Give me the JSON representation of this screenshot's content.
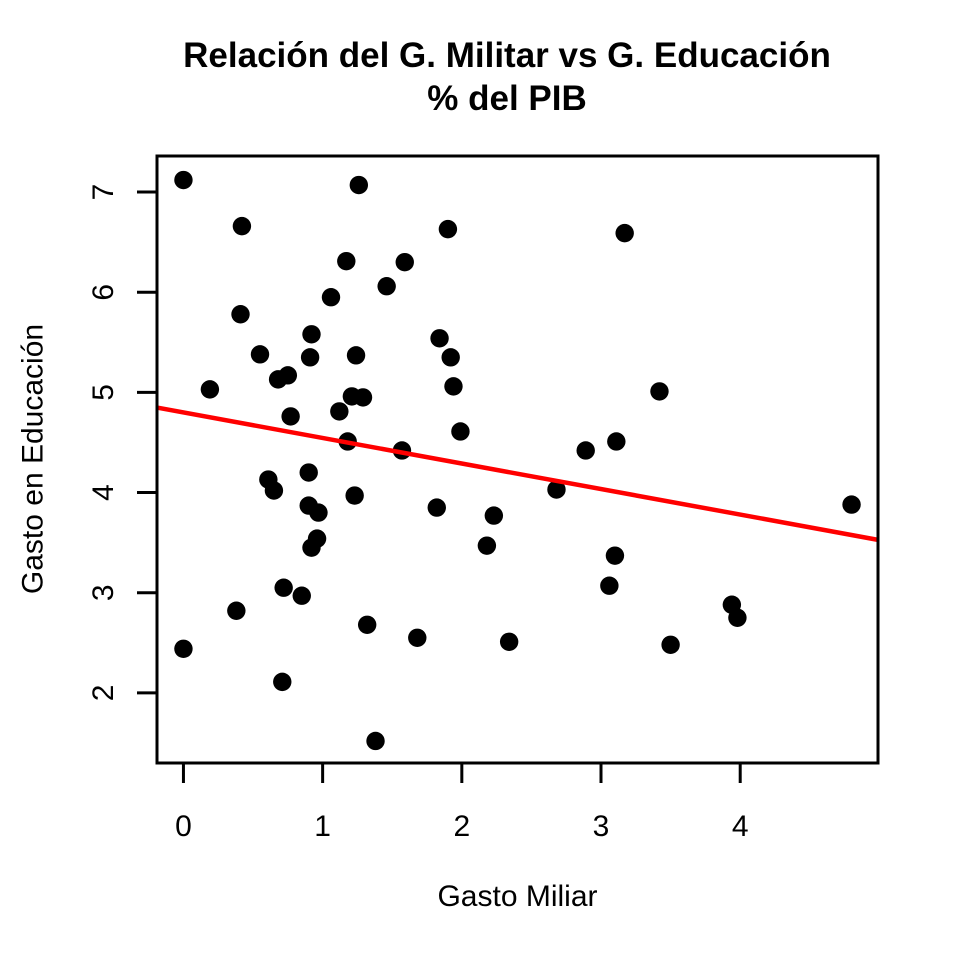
{
  "chart_data": {
    "type": "scatter",
    "title": "Relación del G. Militar vs G. Educación",
    "title_line2": "% del PIB",
    "xlabel": "Gasto Miliar",
    "ylabel": "Gasto en Educación",
    "xlim": [
      -0.19,
      4.99
    ],
    "ylim": [
      1.3,
      7.36
    ],
    "x_ticks": [
      0,
      1,
      2,
      3,
      4
    ],
    "y_ticks": [
      2,
      3,
      4,
      5,
      6,
      7
    ],
    "grid": false,
    "legend": "none",
    "background_color": "#FFFFFF",
    "axis_color": "#000000",
    "point_color": "#000000",
    "trend_line": {
      "type": "linear",
      "slope": -0.255,
      "intercept": 4.8,
      "color": "#FF0000"
    },
    "points": [
      [
        0.0,
        7.12
      ],
      [
        1.26,
        7.07
      ],
      [
        0.42,
        6.66
      ],
      [
        1.9,
        6.63
      ],
      [
        3.17,
        6.59
      ],
      [
        1.17,
        6.31
      ],
      [
        1.59,
        6.3
      ],
      [
        1.46,
        6.06
      ],
      [
        1.06,
        5.95
      ],
      [
        0.41,
        5.78
      ],
      [
        0.92,
        5.58
      ],
      [
        1.84,
        5.54
      ],
      [
        0.55,
        5.38
      ],
      [
        1.24,
        5.37
      ],
      [
        0.91,
        5.35
      ],
      [
        1.92,
        5.35
      ],
      [
        0.75,
        5.17
      ],
      [
        0.68,
        5.13
      ],
      [
        1.94,
        5.06
      ],
      [
        0.19,
        5.03
      ],
      [
        3.42,
        5.01
      ],
      [
        1.21,
        4.96
      ],
      [
        1.29,
        4.95
      ],
      [
        1.12,
        4.81
      ],
      [
        0.77,
        4.76
      ],
      [
        1.99,
        4.61
      ],
      [
        1.18,
        4.51
      ],
      [
        3.11,
        4.51
      ],
      [
        1.57,
        4.42
      ],
      [
        2.89,
        4.42
      ],
      [
        0.9,
        4.2
      ],
      [
        0.61,
        4.13
      ],
      [
        2.68,
        4.03
      ],
      [
        0.65,
        4.02
      ],
      [
        1.23,
        3.97
      ],
      [
        4.8,
        3.88
      ],
      [
        0.9,
        3.87
      ],
      [
        1.82,
        3.85
      ],
      [
        0.97,
        3.8
      ],
      [
        2.23,
        3.77
      ],
      [
        0.96,
        3.54
      ],
      [
        2.18,
        3.47
      ],
      [
        0.92,
        3.45
      ],
      [
        3.1,
        3.37
      ],
      [
        3.06,
        3.07
      ],
      [
        0.72,
        3.05
      ],
      [
        0.85,
        2.97
      ],
      [
        3.94,
        2.88
      ],
      [
        0.38,
        2.82
      ],
      [
        3.98,
        2.75
      ],
      [
        1.32,
        2.68
      ],
      [
        1.68,
        2.55
      ],
      [
        2.34,
        2.51
      ],
      [
        3.5,
        2.48
      ],
      [
        0.0,
        2.44
      ],
      [
        0.71,
        2.11
      ],
      [
        1.38,
        1.52
      ]
    ]
  }
}
